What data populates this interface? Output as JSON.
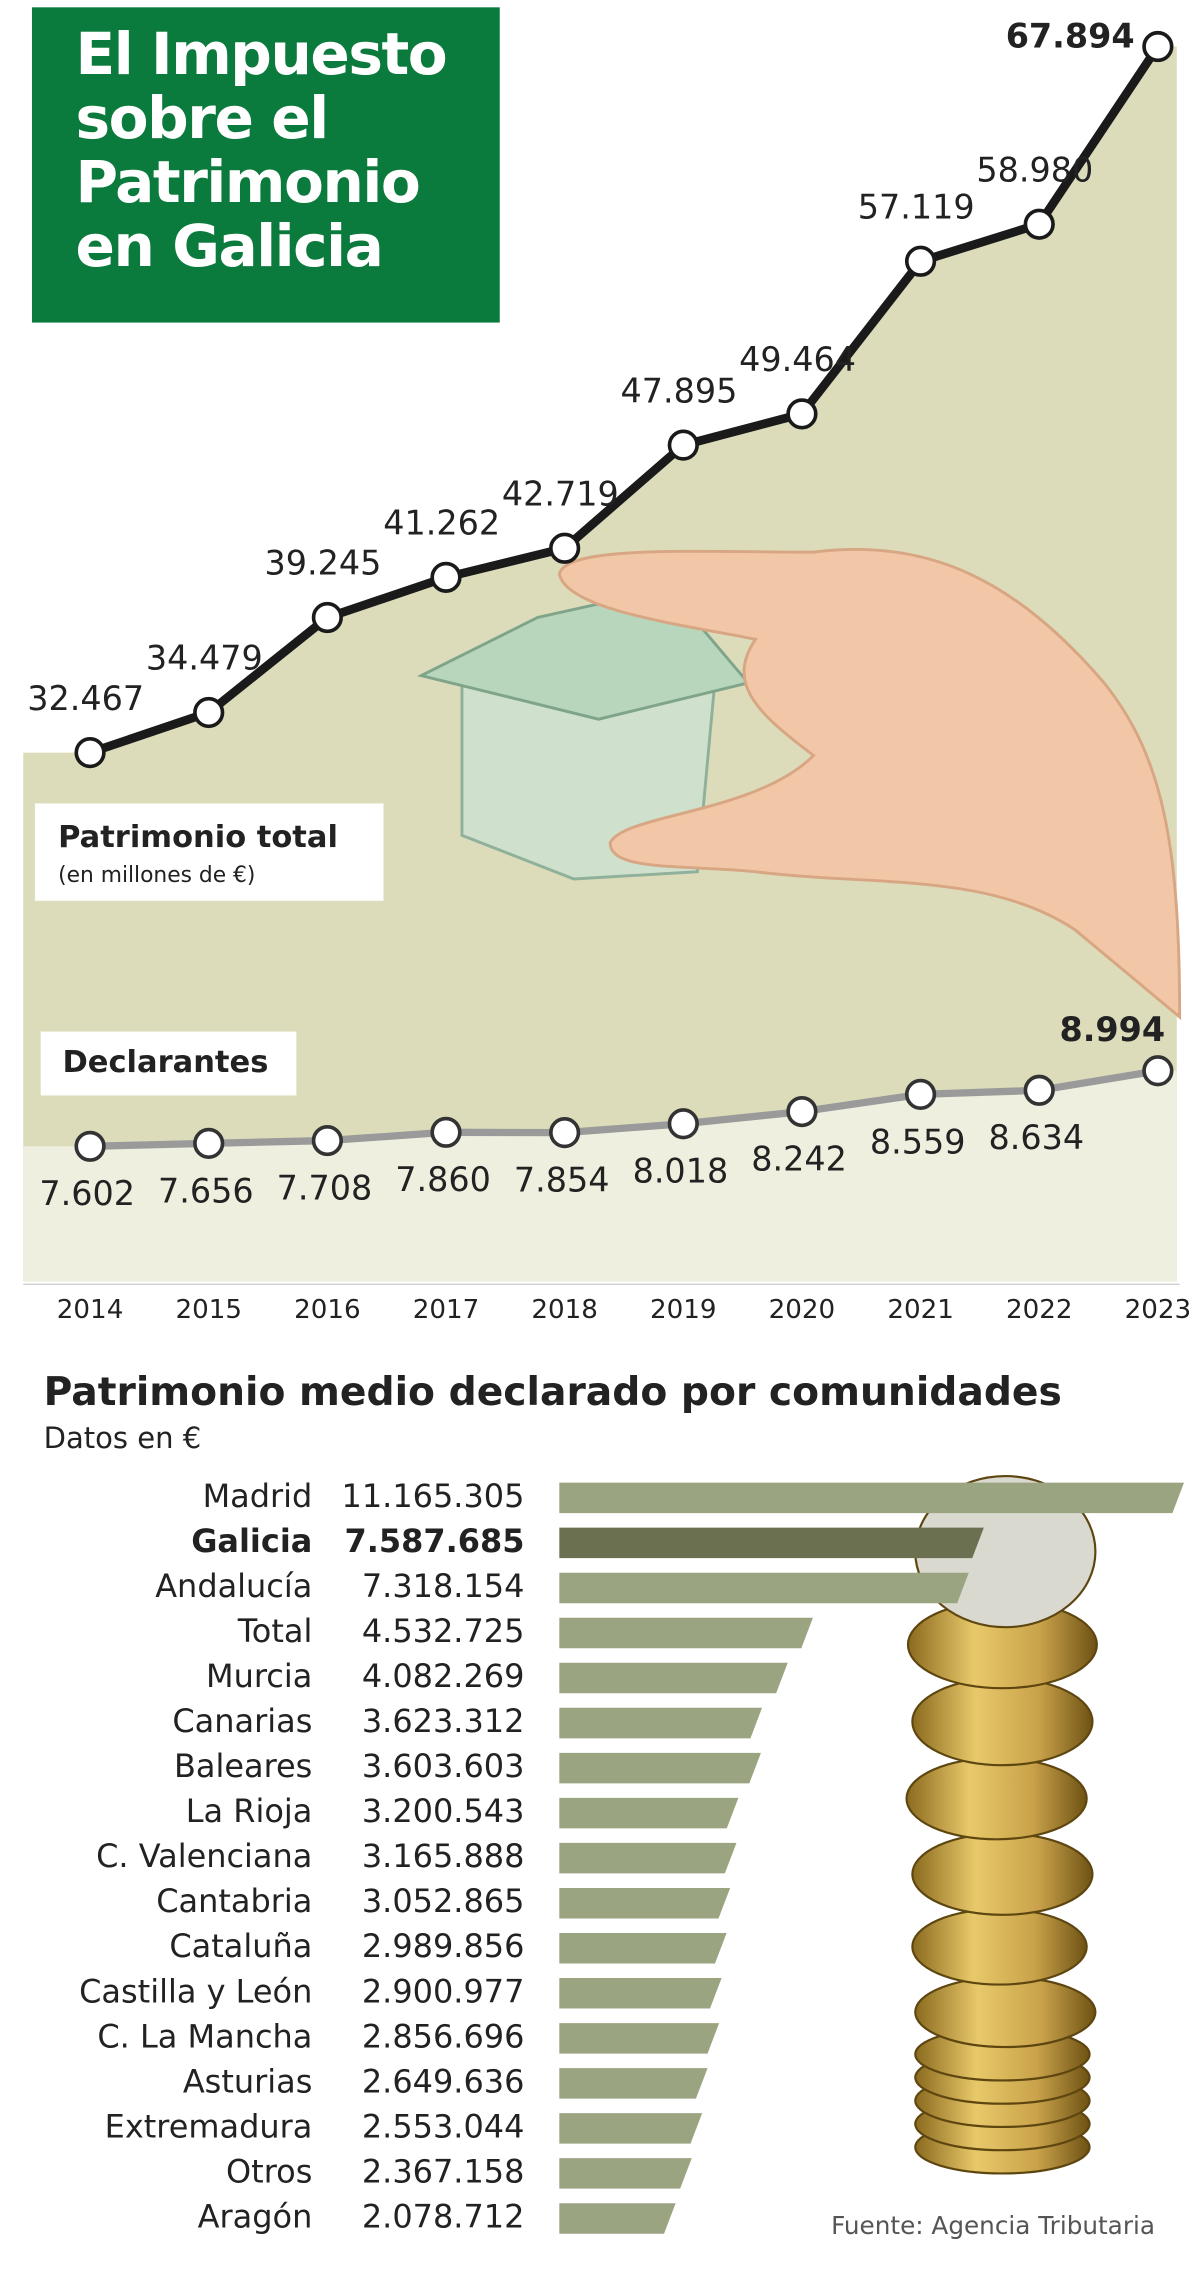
{
  "chart_data": [
    {
      "type": "line",
      "title": "El Impuesto sobre el Patrimonio en Galicia",
      "categories": [
        "2014",
        "2015",
        "2016",
        "2017",
        "2018",
        "2019",
        "2020",
        "2021",
        "2022",
        "2023"
      ],
      "series": [
        {
          "name": "Patrimonio total",
          "subtitle": "(en millones de €)",
          "color": "#1a1a1a",
          "values": [
            32467,
            34479,
            39245,
            41262,
            42719,
            47895,
            49464,
            57119,
            58980,
            67894
          ],
          "value_labels": [
            "32.467",
            "34.479",
            "39.245",
            "41.262",
            "42.719",
            "47.895",
            "49.464",
            "57.119",
            "58.980",
            "67.894"
          ]
        },
        {
          "name": "Declarantes",
          "color": "#9a9a9a",
          "values": [
            7602,
            7656,
            7708,
            7860,
            7854,
            8018,
            8242,
            8559,
            8634,
            8994
          ],
          "value_labels": [
            "7.602",
            "7.656",
            "7.708",
            "7.860",
            "7.854",
            "8.018",
            "8.242",
            "8.559",
            "8.634",
            "8.994"
          ]
        }
      ]
    },
    {
      "type": "hbar",
      "title": "Patrimonio medio declarado por comunidades",
      "subtitle": "Datos en €",
      "categories": [
        "Madrid",
        "Galicia",
        "Andalucía",
        "Total",
        "Murcia",
        "Canarias",
        "Baleares",
        "La Rioja",
        "C. Valenciana",
        "Cantabria",
        "Cataluña",
        "Castilla y León",
        "C. La Mancha",
        "Asturias",
        "Extremadura",
        "Otros",
        "Aragón"
      ],
      "values": [
        11165305,
        7587685,
        7318154,
        4532725,
        4082269,
        3623312,
        3603603,
        3200543,
        3165888,
        3052865,
        2989856,
        2900977,
        2856696,
        2649636,
        2553044,
        2367158,
        2078712
      ],
      "value_labels": [
        "11.165.305",
        "7.587.685",
        "7.318.154",
        "4.532.725",
        "4.082.269",
        "3.623.312",
        "3.603.603",
        "3.200.543",
        "3.165.888",
        "3.052.865",
        "2.989.856",
        "2.900.977",
        "2.856.696",
        "2.649.636",
        "2.553.044",
        "2.367.158",
        "2.078.712"
      ],
      "color": "#9ba480",
      "colors": [
        "#9ba480",
        "#6b7150",
        "#9ba480",
        "#9ba480",
        "#9ba480",
        "#9ba480",
        "#9ba480",
        "#9ba480",
        "#9ba480",
        "#9ba480",
        "#9ba480",
        "#9ba480",
        "#9ba480",
        "#9ba480",
        "#9ba480",
        "#9ba480",
        "#9ba480"
      ]
    }
  ],
  "source": "Fuente: Agencia Tributaria"
}
